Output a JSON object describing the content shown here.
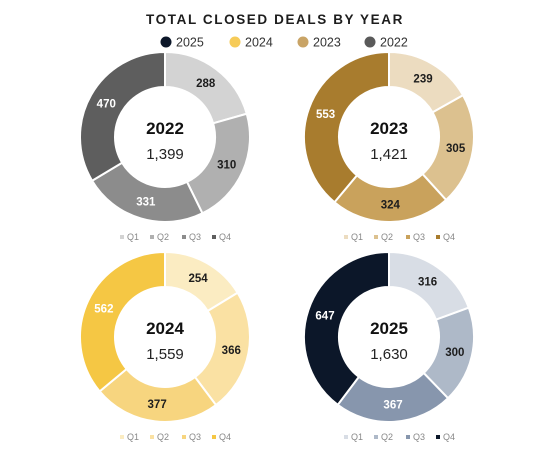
{
  "chart_data": {
    "type": "pie",
    "title": "TOTAL CLOSED DEALS BY YEAR",
    "legend": {
      "placement": "top-center",
      "entries": [
        {
          "label": "2025",
          "color": "#0c1729"
        },
        {
          "label": "2024",
          "color": "#f6cb58"
        },
        {
          "label": "2023",
          "color": "#c9a466"
        },
        {
          "label": "2022",
          "color": "#5a5a5a"
        }
      ]
    },
    "charts": [
      {
        "year": "2022",
        "total": "1,399",
        "categories": [
          "Q1",
          "Q2",
          "Q3",
          "Q4"
        ],
        "values": [
          288,
          310,
          331,
          470
        ],
        "colors": [
          "#d3d3d3",
          "#b0b0b0",
          "#8c8c8c",
          "#5e5e5e"
        ]
      },
      {
        "year": "2023",
        "total": "1,421",
        "categories": [
          "Q1",
          "Q2",
          "Q3",
          "Q4"
        ],
        "values": [
          239,
          305,
          324,
          553
        ],
        "colors": [
          "#ecdcc0",
          "#dcc18f",
          "#c9a25c",
          "#a87c2e"
        ]
      },
      {
        "year": "2024",
        "total": "1,559",
        "categories": [
          "Q1",
          "Q2",
          "Q3",
          "Q4"
        ],
        "values": [
          254,
          366,
          377,
          562
        ],
        "colors": [
          "#fbecc2",
          "#fae1a3",
          "#f7d57f",
          "#f5c744"
        ]
      },
      {
        "year": "2025",
        "total": "1,630",
        "categories": [
          "Q1",
          "Q2",
          "Q3",
          "Q4"
        ],
        "values": [
          316,
          300,
          367,
          647
        ],
        "colors": [
          "#d8dde5",
          "#aeb9c8",
          "#8796ad",
          "#0c1729"
        ]
      }
    ]
  }
}
